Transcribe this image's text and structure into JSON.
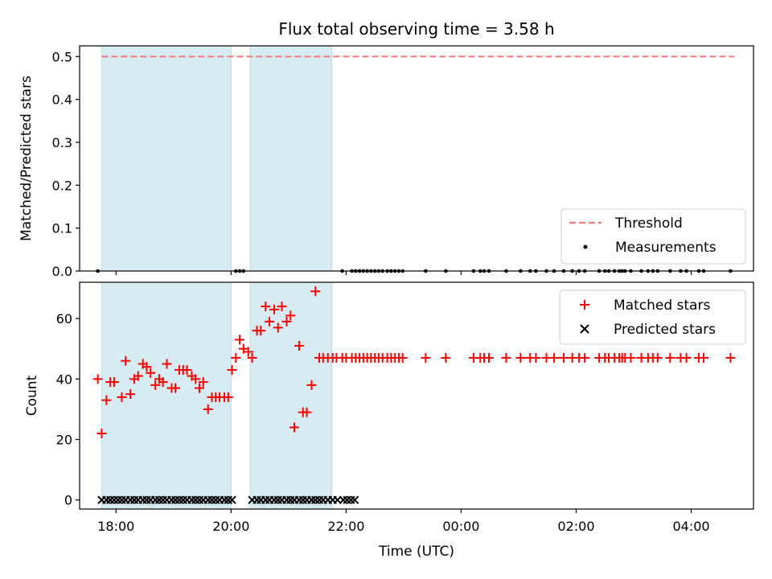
{
  "chart_data": [
    {
      "type": "scatter",
      "title": "Flux total observing time = 3.58 h",
      "xlabel": "",
      "ylabel": "Matched/Predicted stars",
      "xlim": [
        "17:22",
        "05:05"
      ],
      "ylim": [
        0,
        0.525
      ],
      "yticks": [
        "0.0",
        "0.1",
        "0.2",
        "0.3",
        "0.4",
        "0.5"
      ],
      "grid": false,
      "legend_position": "lower-right",
      "shaded_intervals": [
        [
          "17:45",
          "20:00"
        ],
        [
          "20:20",
          "21:45"
        ]
      ],
      "series": [
        {
          "name": "Threshold",
          "style": "dashed-line",
          "color": "#f08080",
          "x": [
            "17:45",
            "04:45"
          ],
          "y": [
            0.5,
            0.5
          ]
        },
        {
          "name": "Measurements",
          "style": "dot",
          "color": "#000000",
          "x": [
            "17:41",
            "20:05",
            "20:09",
            "20:13",
            "21:56",
            "22:06",
            "22:10",
            "22:14",
            "22:18",
            "22:22",
            "22:26",
            "22:30",
            "22:34",
            "22:38",
            "22:43",
            "22:47",
            "22:51",
            "22:55",
            "22:59",
            "23:23",
            "23:44",
            "00:13",
            "00:20",
            "00:24",
            "00:29",
            "00:47",
            "01:02",
            "01:12",
            "01:18",
            "01:29",
            "01:37",
            "01:47",
            "01:56",
            "02:03",
            "02:09",
            "02:24",
            "02:30",
            "02:34",
            "02:40",
            "02:45",
            "02:48",
            "02:51",
            "02:57",
            "03:08",
            "03:15",
            "03:20",
            "03:25",
            "03:38",
            "03:49",
            "03:55",
            "04:08",
            "04:13",
            "04:41"
          ],
          "y": [
            0,
            0,
            0,
            0,
            0,
            0,
            0,
            0,
            0,
            0,
            0,
            0,
            0,
            0,
            0,
            0,
            0,
            0,
            0,
            0,
            0,
            0,
            0,
            0,
            0,
            0,
            0,
            0,
            0,
            0,
            0,
            0,
            0,
            0,
            0,
            0,
            0,
            0,
            0,
            0,
            0,
            0,
            0,
            0,
            0,
            0,
            0,
            0,
            0,
            0,
            0,
            0,
            0
          ]
        }
      ]
    },
    {
      "type": "scatter",
      "title": "",
      "xlabel": "Time (UTC)",
      "ylabel": "Count",
      "xlim": [
        "17:22",
        "05:05"
      ],
      "ylim": [
        -3,
        72
      ],
      "yticks": [
        "0",
        "20",
        "40",
        "60"
      ],
      "xticks": [
        "18:00",
        "20:00",
        "22:00",
        "00:00",
        "02:00",
        "04:00"
      ],
      "grid": false,
      "legend_position": "upper-right",
      "shaded_intervals": [
        [
          "17:45",
          "20:00"
        ],
        [
          "20:20",
          "21:45"
        ]
      ],
      "series": [
        {
          "name": "Matched stars",
          "style": "plus",
          "color": "#ff0000",
          "x": [
            "17:41",
            "17:45",
            "17:50",
            "17:54",
            "17:58",
            "18:06",
            "18:10",
            "18:15",
            "18:19",
            "18:23",
            "18:28",
            "18:32",
            "18:36",
            "18:41",
            "18:45",
            "18:49",
            "18:53",
            "18:58",
            "19:02",
            "19:06",
            "19:10",
            "19:14",
            "19:19",
            "19:23",
            "19:27",
            "19:31",
            "19:36",
            "19:40",
            "19:44",
            "19:48",
            "19:53",
            "19:57",
            "20:01",
            "20:05",
            "20:09",
            "20:13",
            "20:18",
            "20:22",
            "20:27",
            "20:31",
            "20:36",
            "20:40",
            "20:45",
            "20:49",
            "20:53",
            "20:58",
            "21:02",
            "21:06",
            "21:11",
            "21:15",
            "21:19",
            "21:24",
            "21:28",
            "21:32",
            "21:36",
            "21:41",
            "21:46",
            "21:50",
            "21:56",
            "22:00",
            "22:06",
            "22:10",
            "22:14",
            "22:18",
            "22:22",
            "22:26",
            "22:30",
            "22:34",
            "22:38",
            "22:43",
            "22:47",
            "22:51",
            "22:55",
            "22:59",
            "23:23",
            "23:44",
            "00:13",
            "00:20",
            "00:24",
            "00:29",
            "00:47",
            "01:02",
            "01:12",
            "01:18",
            "01:29",
            "01:37",
            "01:47",
            "01:56",
            "02:03",
            "02:09",
            "02:24",
            "02:30",
            "02:34",
            "02:40",
            "02:45",
            "02:48",
            "02:51",
            "02:57",
            "03:08",
            "03:15",
            "03:20",
            "03:25",
            "03:38",
            "03:49",
            "03:55",
            "04:08",
            "04:13",
            "04:41"
          ],
          "y": [
            40,
            22,
            33,
            39,
            39,
            34,
            46,
            35,
            40,
            41,
            45,
            44,
            42,
            38,
            40,
            39,
            45,
            37,
            37,
            43,
            43,
            43,
            41,
            40,
            37,
            39,
            30,
            34,
            34,
            34,
            34,
            34,
            43,
            47,
            53,
            50,
            49,
            47,
            56,
            56,
            64,
            59,
            63,
            57,
            64,
            59,
            61,
            24,
            51,
            29,
            29,
            38,
            69,
            47,
            47,
            47,
            47,
            47,
            47,
            47,
            47,
            47,
            47,
            47,
            47,
            47,
            47,
            47,
            47,
            47,
            47,
            47,
            47,
            47,
            47,
            47,
            47,
            47,
            47,
            47,
            47,
            47,
            47,
            47,
            47,
            47,
            47,
            47,
            47,
            47,
            47,
            47,
            47,
            47,
            47,
            47,
            47,
            47,
            47,
            47,
            47,
            47,
            47,
            47,
            47,
            47,
            47,
            47
          ]
        },
        {
          "name": "Predicted stars",
          "style": "x",
          "color": "#000000",
          "x": [
            "17:45",
            "17:50",
            "17:54",
            "17:58",
            "18:02",
            "18:06",
            "18:10",
            "18:15",
            "18:19",
            "18:23",
            "18:28",
            "18:32",
            "18:36",
            "18:41",
            "18:45",
            "18:49",
            "18:53",
            "18:58",
            "19:02",
            "19:06",
            "19:10",
            "19:14",
            "19:19",
            "19:23",
            "19:27",
            "19:31",
            "19:36",
            "19:40",
            "19:44",
            "19:48",
            "19:53",
            "19:57",
            "20:01",
            "20:22",
            "20:27",
            "20:31",
            "20:36",
            "20:40",
            "20:45",
            "20:49",
            "20:53",
            "20:58",
            "21:02",
            "21:06",
            "21:11",
            "21:15",
            "21:19",
            "21:24",
            "21:28",
            "21:32",
            "21:36",
            "21:41",
            "21:46",
            "21:51",
            "21:57",
            "22:01",
            "22:05",
            "22:09"
          ],
          "y": [
            0,
            0,
            0,
            0,
            0,
            0,
            0,
            0,
            0,
            0,
            0,
            0,
            0,
            0,
            0,
            0,
            0,
            0,
            0,
            0,
            0,
            0,
            0,
            0,
            0,
            0,
            0,
            0,
            0,
            0,
            0,
            0,
            0,
            0,
            0,
            0,
            0,
            0,
            0,
            0,
            0,
            0,
            0,
            0,
            0,
            0,
            0,
            0,
            0,
            0,
            0,
            0,
            0,
            0,
            0,
            0,
            0,
            0
          ]
        }
      ]
    }
  ]
}
